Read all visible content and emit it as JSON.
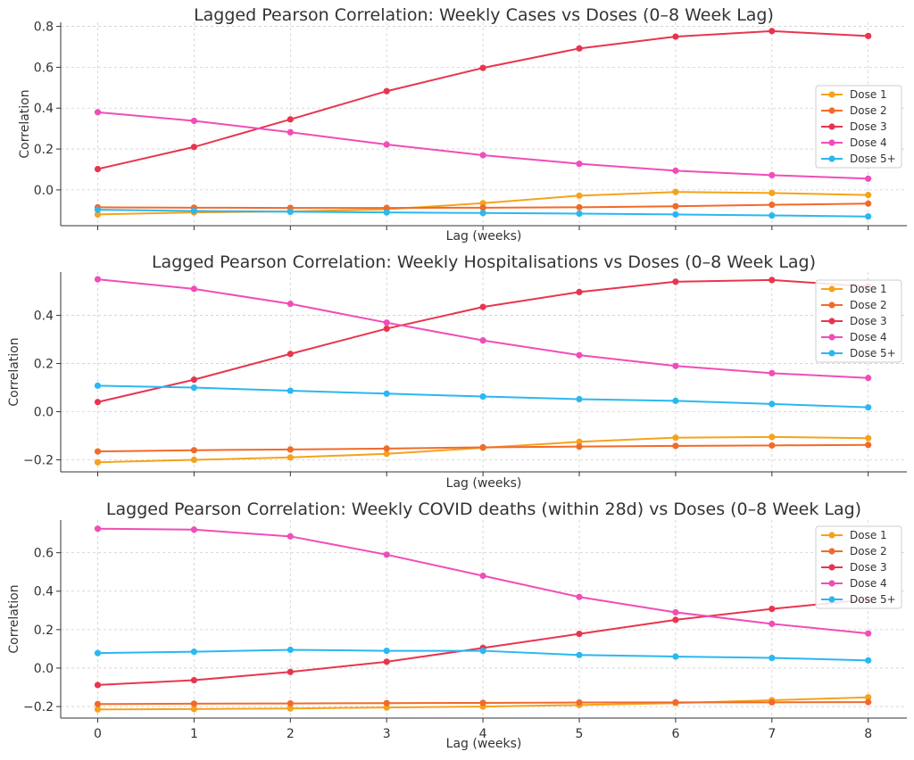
{
  "colors": {
    "Dose 1": "#f5a31a",
    "Dose 2": "#f26a2a",
    "Dose 3": "#e8354f",
    "Dose 4": "#f04db8",
    "Dose 5+": "#2ab8f0"
  },
  "chart_data": [
    {
      "type": "line",
      "title": "Lagged Pearson Correlation: Weekly Cases vs Doses (0–8 Week Lag)",
      "xlabel": "Lag (weeks)",
      "ylabel": "Correlation",
      "x": [
        0,
        1,
        2,
        3,
        4,
        5,
        6,
        7,
        8
      ],
      "ylim": [
        -0.175,
        0.82
      ],
      "yticks": [
        "0.0",
        "0.2",
        "0.4",
        "0.6",
        "0.8"
      ],
      "ytick_values": [
        0.0,
        0.2,
        0.4,
        0.6,
        0.8
      ],
      "grid": true,
      "legend_position": "right",
      "series": [
        {
          "name": "Dose 1",
          "values": [
            -0.12,
            -0.11,
            -0.105,
            -0.095,
            -0.065,
            -0.028,
            -0.01,
            -0.015,
            -0.025
          ]
        },
        {
          "name": "Dose 2",
          "values": [
            -0.085,
            -0.087,
            -0.088,
            -0.088,
            -0.087,
            -0.085,
            -0.08,
            -0.073,
            -0.067
          ]
        },
        {
          "name": "Dose 3",
          "values": [
            0.102,
            0.21,
            0.345,
            0.483,
            0.597,
            0.692,
            0.75,
            0.777,
            0.753
          ]
        },
        {
          "name": "Dose 4",
          "values": [
            0.38,
            0.338,
            0.282,
            0.222,
            0.17,
            0.128,
            0.094,
            0.072,
            0.055
          ]
        },
        {
          "name": "Dose 5+",
          "values": [
            -0.097,
            -0.103,
            -0.107,
            -0.11,
            -0.113,
            -0.116,
            -0.12,
            -0.125,
            -0.13
          ]
        }
      ]
    },
    {
      "type": "line",
      "title": "Lagged Pearson Correlation: Weekly Hospitalisations vs Doses (0–8 Week Lag)",
      "xlabel": "Lag (weeks)",
      "ylabel": "Correlation",
      "x": [
        0,
        1,
        2,
        3,
        4,
        5,
        6,
        7,
        8
      ],
      "ylim": [
        -0.25,
        0.58
      ],
      "yticks": [
        "−0.2",
        "0.0",
        "0.2",
        "0.4"
      ],
      "ytick_values": [
        -0.2,
        0.0,
        0.2,
        0.4
      ],
      "grid": true,
      "legend_position": "upper right",
      "series": [
        {
          "name": "Dose 1",
          "values": [
            -0.21,
            -0.2,
            -0.19,
            -0.175,
            -0.15,
            -0.125,
            -0.108,
            -0.105,
            -0.11
          ]
        },
        {
          "name": "Dose 2",
          "values": [
            -0.165,
            -0.16,
            -0.157,
            -0.153,
            -0.148,
            -0.145,
            -0.142,
            -0.14,
            -0.138
          ]
        },
        {
          "name": "Dose 3",
          "values": [
            0.04,
            0.133,
            0.24,
            0.345,
            0.435,
            0.497,
            0.54,
            0.547,
            0.52
          ]
        },
        {
          "name": "Dose 4",
          "values": [
            0.55,
            0.51,
            0.448,
            0.37,
            0.296,
            0.235,
            0.19,
            0.16,
            0.14
          ]
        },
        {
          "name": "Dose 5+",
          "values": [
            0.108,
            0.1,
            0.087,
            0.075,
            0.063,
            0.052,
            0.045,
            0.032,
            0.018
          ]
        }
      ]
    },
    {
      "type": "line",
      "title": "Lagged Pearson Correlation: Weekly COVID deaths (within 28d) vs Doses (0–8 Week Lag)",
      "xlabel": "Lag (weeks)",
      "ylabel": "Correlation",
      "x": [
        0,
        1,
        2,
        3,
        4,
        5,
        6,
        7,
        8
      ],
      "xticks": [
        "0",
        "1",
        "2",
        "3",
        "4",
        "5",
        "6",
        "7",
        "8"
      ],
      "ylim": [
        -0.26,
        0.77
      ],
      "yticks": [
        "−0.2",
        "0.0",
        "0.2",
        "0.4",
        "0.6"
      ],
      "ytick_values": [
        -0.2,
        0.0,
        0.2,
        0.4,
        0.6
      ],
      "grid": true,
      "legend_position": "upper right",
      "series": [
        {
          "name": "Dose 1",
          "values": [
            -0.215,
            -0.213,
            -0.21,
            -0.205,
            -0.2,
            -0.192,
            -0.182,
            -0.167,
            -0.152
          ]
        },
        {
          "name": "Dose 2",
          "values": [
            -0.187,
            -0.185,
            -0.184,
            -0.182,
            -0.181,
            -0.179,
            -0.178,
            -0.178,
            -0.177
          ]
        },
        {
          "name": "Dose 3",
          "values": [
            -0.088,
            -0.063,
            -0.02,
            0.033,
            0.105,
            0.178,
            0.251,
            0.308,
            0.357
          ]
        },
        {
          "name": "Dose 4",
          "values": [
            0.725,
            0.72,
            0.685,
            0.59,
            0.48,
            0.37,
            0.29,
            0.23,
            0.18
          ]
        },
        {
          "name": "Dose 5+",
          "values": [
            0.078,
            0.085,
            0.095,
            0.09,
            0.09,
            0.068,
            0.06,
            0.053,
            0.04
          ]
        }
      ]
    }
  ]
}
